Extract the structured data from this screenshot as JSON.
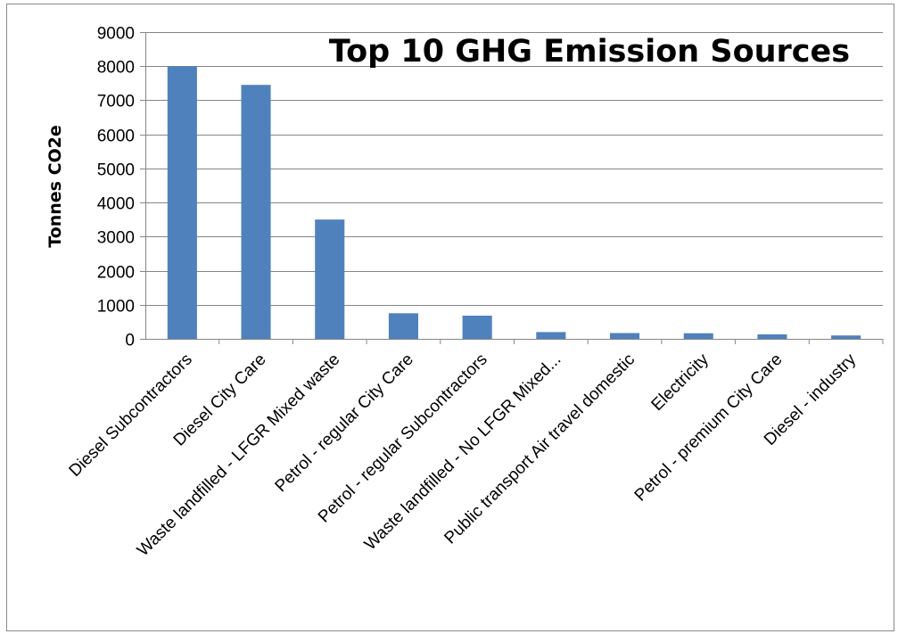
{
  "chart_data": {
    "type": "bar",
    "title": "Top 10 GHG Emission Sources",
    "xlabel": "",
    "ylabel": "Tonnes CO2e",
    "ylim": [
      0,
      9000
    ],
    "yticks": [
      0,
      1000,
      2000,
      3000,
      4000,
      5000,
      6000,
      7000,
      8000,
      9000
    ],
    "grid": true,
    "legend": "none",
    "bar_color": "#4f81bd",
    "categories": [
      "Diesel  Subcontractors",
      "Diesel City Care",
      "Waste landfilled - LFGR Mixed waste",
      "Petrol - regular City Care",
      "Petrol - regular  Subcontractors",
      "Waste landfilled - No LFGR Mixed...",
      "Public transport Air travel domestic",
      "Electricity",
      "Petrol - premium  City Care",
      "Diesel - industry"
    ],
    "values": [
      8000,
      7450,
      3500,
      750,
      680,
      200,
      170,
      165,
      130,
      100
    ]
  }
}
